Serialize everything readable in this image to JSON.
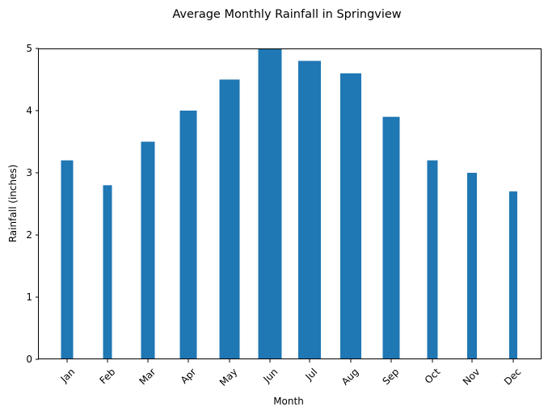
{
  "chart_data": {
    "type": "bar",
    "title": "Average Monthly Rainfall in Springview",
    "xlabel": "Month",
    "ylabel": "Rainfall (inches)",
    "categories": [
      "Jan",
      "Feb",
      "Mar",
      "Apr",
      "May",
      "Jun",
      "Jul",
      "Aug",
      "Sep",
      "Oct",
      "Nov",
      "Dec"
    ],
    "values": [
      3.2,
      2.8,
      3.5,
      4.0,
      4.5,
      5.0,
      4.8,
      4.6,
      3.9,
      3.2,
      3.0,
      2.7
    ],
    "ylim": [
      0,
      5
    ],
    "yticks": [
      "0",
      "1",
      "2",
      "3",
      "4",
      "5"
    ],
    "grid": false,
    "legend": "none",
    "bar_color": "#1f77b4"
  }
}
